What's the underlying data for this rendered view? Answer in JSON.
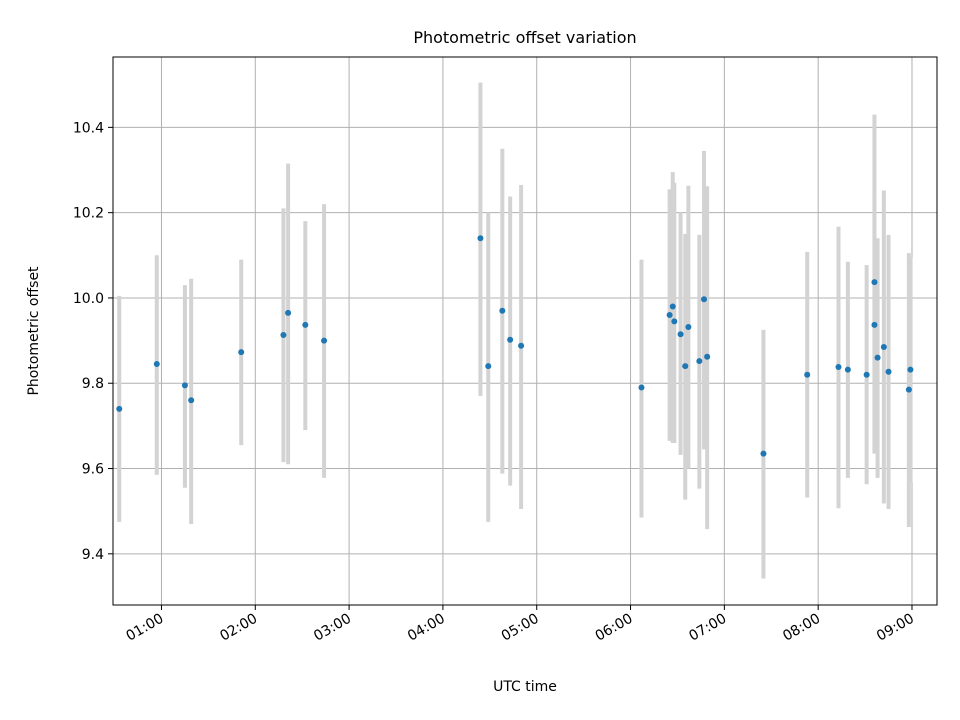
{
  "chart_data": {
    "type": "scatter",
    "title": "Photometric offset variation",
    "xlabel": "UTC time",
    "ylabel": "Photometric offset",
    "xlim": [
      "00:29",
      "09:16"
    ],
    "ylim": [
      9.28,
      10.565
    ],
    "grid": true,
    "x_ticks": [
      "01:00",
      "02:00",
      "03:00",
      "04:00",
      "05:00",
      "06:00",
      "07:00",
      "08:00",
      "09:00"
    ],
    "y_ticks": [
      9.4,
      9.6,
      9.8,
      10.0,
      10.2,
      10.4
    ],
    "y_tick_labels": [
      "9.4",
      "9.6",
      "9.8",
      "10.0",
      "10.2",
      "10.4"
    ],
    "point_color": "#1f77b4",
    "errorbar_color": "#d3d3d3",
    "points": [
      {
        "t": "00:33",
        "y": 9.74,
        "lo": 9.475,
        "hi": 10.005
      },
      {
        "t": "00:57",
        "y": 9.845,
        "lo": 9.585,
        "hi": 10.1
      },
      {
        "t": "01:15",
        "y": 9.795,
        "lo": 9.555,
        "hi": 10.03
      },
      {
        "t": "01:19",
        "y": 9.76,
        "lo": 9.47,
        "hi": 10.045
      },
      {
        "t": "01:51",
        "y": 9.873,
        "lo": 9.655,
        "hi": 10.09
      },
      {
        "t": "02:18",
        "y": 9.913,
        "lo": 9.615,
        "hi": 10.21
      },
      {
        "t": "02:21",
        "y": 9.965,
        "lo": 9.61,
        "hi": 10.315
      },
      {
        "t": "02:32",
        "y": 9.937,
        "lo": 9.69,
        "hi": 10.18
      },
      {
        "t": "02:44",
        "y": 9.9,
        "lo": 9.578,
        "hi": 10.22
      },
      {
        "t": "04:24",
        "y": 10.14,
        "lo": 9.77,
        "hi": 10.505
      },
      {
        "t": "04:29",
        "y": 9.84,
        "lo": 9.475,
        "hi": 10.2
      },
      {
        "t": "04:38",
        "y": 9.97,
        "lo": 9.588,
        "hi": 10.35
      },
      {
        "t": "04:43",
        "y": 9.902,
        "lo": 9.56,
        "hi": 10.238
      },
      {
        "t": "04:50",
        "y": 9.888,
        "lo": 9.505,
        "hi": 10.265
      },
      {
        "t": "06:07",
        "y": 9.79,
        "lo": 9.485,
        "hi": 10.09
      },
      {
        "t": "06:25",
        "y": 9.96,
        "lo": 9.665,
        "hi": 10.255
      },
      {
        "t": "06:27",
        "y": 9.98,
        "lo": 9.66,
        "hi": 10.295
      },
      {
        "t": "06:28",
        "y": 9.945,
        "lo": 9.66,
        "hi": 10.27
      },
      {
        "t": "06:32",
        "y": 9.915,
        "lo": 9.632,
        "hi": 10.2
      },
      {
        "t": "06:35",
        "y": 9.84,
        "lo": 9.527,
        "hi": 10.15
      },
      {
        "t": "06:37",
        "y": 9.932,
        "lo": 9.6,
        "hi": 10.263
      },
      {
        "t": "06:44",
        "y": 9.852,
        "lo": 9.553,
        "hi": 10.148
      },
      {
        "t": "06:47",
        "y": 9.997,
        "lo": 9.645,
        "hi": 10.345
      },
      {
        "t": "06:49",
        "y": 9.862,
        "lo": 9.458,
        "hi": 10.262
      },
      {
        "t": "07:25",
        "y": 9.635,
        "lo": 9.342,
        "hi": 9.925
      },
      {
        "t": "07:53",
        "y": 9.82,
        "lo": 9.532,
        "hi": 10.108
      },
      {
        "t": "08:13",
        "y": 9.838,
        "lo": 9.507,
        "hi": 10.167
      },
      {
        "t": "08:19",
        "y": 9.832,
        "lo": 9.578,
        "hi": 10.085
      },
      {
        "t": "08:31",
        "y": 9.82,
        "lo": 9.563,
        "hi": 10.077
      },
      {
        "t": "08:36",
        "y": 10.037,
        "lo": 9.64,
        "hi": 10.43
      },
      {
        "t": "08:36",
        "y": 9.937,
        "lo": 9.635,
        "hi": 10.238
      },
      {
        "t": "08:38",
        "y": 9.86,
        "lo": 9.578,
        "hi": 10.14
      },
      {
        "t": "08:42",
        "y": 9.885,
        "lo": 9.518,
        "hi": 10.252
      },
      {
        "t": "08:45",
        "y": 9.827,
        "lo": 9.505,
        "hi": 10.148
      },
      {
        "t": "08:58",
        "y": 9.785,
        "lo": 9.463,
        "hi": 10.105
      },
      {
        "t": "08:59",
        "y": 9.832,
        "lo": 9.568,
        "hi": 10.095
      }
    ]
  }
}
